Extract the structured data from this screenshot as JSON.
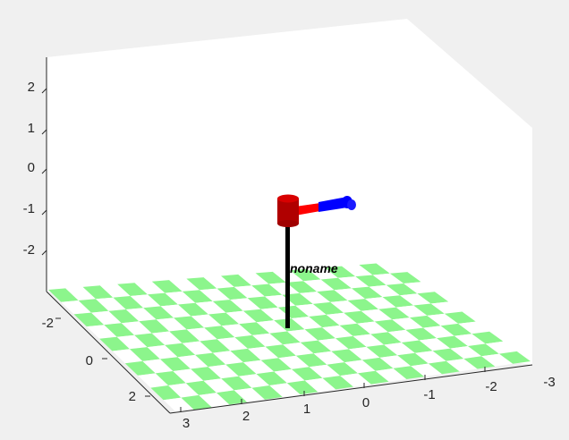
{
  "figure": {
    "background": "#f0f0f0",
    "axes_color": "#262626",
    "floor_colors": [
      "#8cf58c",
      "#ffffff"
    ]
  },
  "axes": {
    "z_ticks": [
      "2",
      "1",
      "0",
      "-1",
      "-2"
    ],
    "y_ticks": [
      "-2",
      "0",
      "2"
    ],
    "x_ticks": [
      "3",
      "2",
      "1",
      "0",
      "-1",
      "-2",
      "-3"
    ]
  },
  "robot": {
    "name": "noname",
    "base_color": "#c00000",
    "link1_color": "#ff0000",
    "link2_color": "#0000ff",
    "pole_color": "#000000"
  }
}
